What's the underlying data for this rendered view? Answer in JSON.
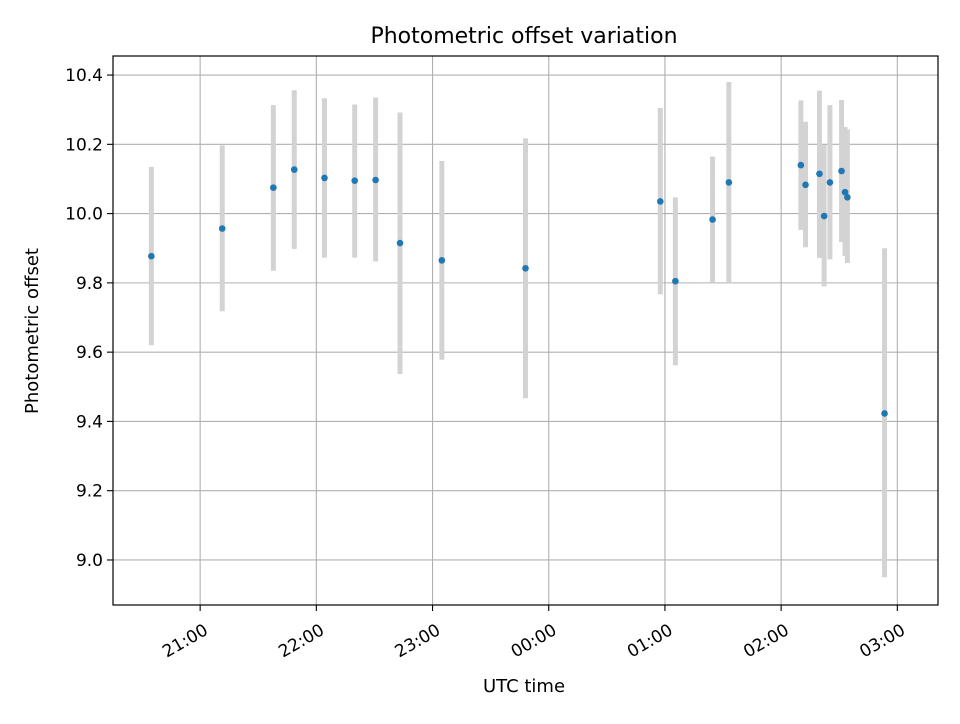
{
  "chart_data": {
    "type": "scatter",
    "title": "Photometric offset variation",
    "xlabel": "UTC time",
    "ylabel": "Photometric offset",
    "x_unit": "hours since 00:00 UTC (negative = previous day)",
    "xlim": [
      -3.75,
      3.35
    ],
    "ylim": [
      8.87,
      10.455
    ],
    "grid": true,
    "x_ticks": [
      {
        "value": -3,
        "label": "21:00"
      },
      {
        "value": -2,
        "label": "22:00"
      },
      {
        "value": -1,
        "label": "23:00"
      },
      {
        "value": 0,
        "label": "00:00"
      },
      {
        "value": 1,
        "label": "01:00"
      },
      {
        "value": 2,
        "label": "02:00"
      },
      {
        "value": 3,
        "label": "03:00"
      }
    ],
    "y_ticks": [
      {
        "value": 9.0,
        "label": "9.0"
      },
      {
        "value": 9.2,
        "label": "9.2"
      },
      {
        "value": 9.4,
        "label": "9.4"
      },
      {
        "value": 9.6,
        "label": "9.6"
      },
      {
        "value": 9.8,
        "label": "9.8"
      },
      {
        "value": 10.0,
        "label": "10.0"
      },
      {
        "value": 10.2,
        "label": "10.2"
      },
      {
        "value": 10.4,
        "label": "10.4"
      }
    ],
    "colors": {
      "point": "#1f77b4",
      "errorbar": "#d3d3d3",
      "grid": "#b0b0b0",
      "axis": "#000000"
    },
    "series": [
      {
        "name": "Photometric offset",
        "points": [
          {
            "time": "20:35",
            "x": -3.42,
            "y": 9.877,
            "y_low": 9.62,
            "y_high": 10.135
          },
          {
            "time": "21:11",
            "x": -2.81,
            "y": 9.957,
            "y_low": 9.718,
            "y_high": 10.197
          },
          {
            "time": "21:38",
            "x": -2.37,
            "y": 10.075,
            "y_low": 9.835,
            "y_high": 10.313
          },
          {
            "time": "21:49",
            "x": -2.19,
            "y": 10.127,
            "y_low": 9.898,
            "y_high": 10.356
          },
          {
            "time": "22:04",
            "x": -1.93,
            "y": 10.103,
            "y_low": 9.873,
            "y_high": 10.333
          },
          {
            "time": "22:20",
            "x": -1.67,
            "y": 10.095,
            "y_low": 9.873,
            "y_high": 10.315
          },
          {
            "time": "22:30",
            "x": -1.49,
            "y": 10.097,
            "y_low": 9.862,
            "y_high": 10.335
          },
          {
            "time": "22:43",
            "x": -1.28,
            "y": 9.915,
            "y_low": 9.537,
            "y_high": 10.292
          },
          {
            "time": "23:04",
            "x": -0.92,
            "y": 9.865,
            "y_low": 9.578,
            "y_high": 10.152
          },
          {
            "time": "23:47",
            "x": -0.2,
            "y": 9.842,
            "y_low": 9.467,
            "y_high": 10.217
          },
          {
            "time": "00:57",
            "x": 0.96,
            "y": 10.035,
            "y_low": 9.767,
            "y_high": 10.305
          },
          {
            "time": "01:05",
            "x": 1.09,
            "y": 9.805,
            "y_low": 9.562,
            "y_high": 10.047
          },
          {
            "time": "01:24",
            "x": 1.41,
            "y": 9.983,
            "y_low": 9.802,
            "y_high": 10.165
          },
          {
            "time": "01:33",
            "x": 1.55,
            "y": 10.09,
            "y_low": 9.8,
            "y_high": 10.38
          },
          {
            "time": "02:10",
            "x": 2.17,
            "y": 10.14,
            "y_low": 9.953,
            "y_high": 10.327
          },
          {
            "time": "02:13",
            "x": 2.21,
            "y": 10.083,
            "y_low": 9.903,
            "y_high": 10.265
          },
          {
            "time": "02:20",
            "x": 2.33,
            "y": 10.115,
            "y_low": 9.872,
            "y_high": 10.355
          },
          {
            "time": "02:22",
            "x": 2.37,
            "y": 9.993,
            "y_low": 9.79,
            "y_high": 10.198
          },
          {
            "time": "02:25",
            "x": 2.42,
            "y": 10.09,
            "y_low": 9.868,
            "y_high": 10.313
          },
          {
            "time": "02:31",
            "x": 2.52,
            "y": 10.123,
            "y_low": 9.918,
            "y_high": 10.328
          },
          {
            "time": "02:33",
            "x": 2.55,
            "y": 10.062,
            "y_low": 9.878,
            "y_high": 10.25
          },
          {
            "time": "02:34",
            "x": 2.57,
            "y": 10.047,
            "y_low": 9.857,
            "y_high": 10.243
          },
          {
            "time": "02:53",
            "x": 2.89,
            "y": 9.423,
            "y_low": 8.95,
            "y_high": 9.9
          }
        ]
      }
    ]
  }
}
